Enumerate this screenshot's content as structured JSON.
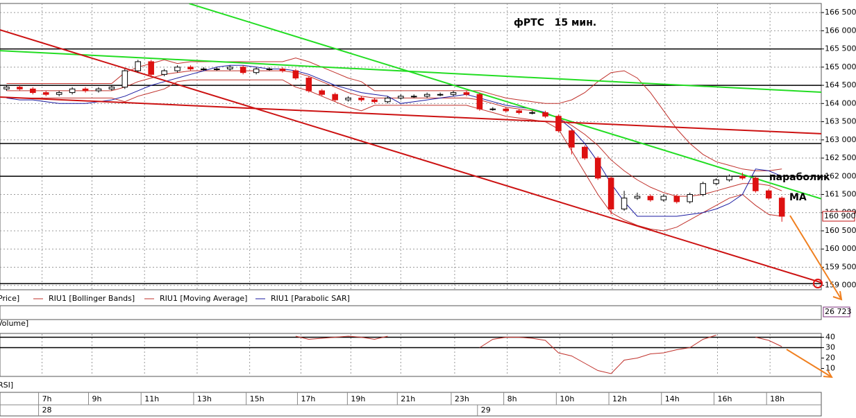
{
  "chart_data": {
    "type": "candlestick",
    "title": "фРТС   15 мин.",
    "annotations": [
      "параболик",
      "MA"
    ],
    "legend": "Price]",
    "ylim": [
      158880,
      166750
    ],
    "yticks": [
      {
        "value": 159000,
        "label": "159 000"
      },
      {
        "value": 159500,
        "label": "159 500"
      },
      {
        "value": 160000,
        "label": "160 000"
      },
      {
        "value": 160500,
        "label": "160 500"
      },
      {
        "value": 161000,
        "label": "161 000"
      },
      {
        "value": 161500,
        "label": "161 500"
      },
      {
        "value": 162000,
        "label": "162 000"
      },
      {
        "value": 162500,
        "label": "162 500"
      },
      {
        "value": 163000,
        "label": "163 000"
      },
      {
        "value": 163500,
        "label": "163 500"
      },
      {
        "value": 164000,
        "label": "164 000"
      },
      {
        "value": 164500,
        "label": "164 500"
      },
      {
        "value": 165000,
        "label": "165 000"
      },
      {
        "value": 165500,
        "label": "165 500"
      },
      {
        "value": 166000,
        "label": "166 000"
      },
      {
        "value": 166500,
        "label": "166 500"
      }
    ],
    "grid": true,
    "xlim": [
      -0.5,
      62
    ],
    "xticks": [
      {
        "value": 2.7,
        "label": "7h"
      },
      {
        "value": 6.5,
        "label": "9h"
      },
      {
        "value": 10.5,
        "label": "11h"
      },
      {
        "value": 14.5,
        "label": "13h"
      },
      {
        "value": 18.5,
        "label": "15h"
      },
      {
        "value": 22.4,
        "label": "17h"
      },
      {
        "value": 26.2,
        "label": "19h"
      },
      {
        "value": 30,
        "label": "21h"
      },
      {
        "value": 34.1,
        "label": "23h"
      },
      {
        "value": 38.1,
        "label": "8h"
      },
      {
        "value": 42.1,
        "label": "10h"
      },
      {
        "value": 46.1,
        "label": "12h"
      },
      {
        "value": 50.1,
        "label": "14h"
      },
      {
        "value": 54.1,
        "label": "16h"
      },
      {
        "value": 58.1,
        "label": "18h"
      }
    ],
    "days": [
      {
        "value": 2.7,
        "label": "28"
      },
      {
        "value": 36.1,
        "label": "29"
      }
    ],
    "up_color": "#ffffff",
    "down_color": "#dd1111",
    "ohlc": [
      [
        164400,
        164500,
        164350,
        164450
      ],
      [
        164450,
        164500,
        164350,
        164400
      ],
      [
        164400,
        164450,
        164250,
        164300
      ],
      [
        164300,
        164350,
        164200,
        164250
      ],
      [
        164250,
        164350,
        164200,
        164300
      ],
      [
        164300,
        164450,
        164250,
        164400
      ],
      [
        164400,
        164450,
        164300,
        164350
      ],
      [
        164350,
        164450,
        164300,
        164400
      ],
      [
        164400,
        164500,
        164350,
        164450
      ],
      [
        164450,
        164950,
        164400,
        164900
      ],
      [
        164900,
        165200,
        164850,
        165150
      ],
      [
        165150,
        165200,
        164750,
        164800
      ],
      [
        164800,
        164950,
        164750,
        164900
      ],
      [
        164900,
        165050,
        164850,
        165000
      ],
      [
        165000,
        165050,
        164900,
        164950
      ],
      [
        164950,
        165000,
        164900,
        164950
      ],
      [
        164950,
        165000,
        164900,
        164950
      ],
      [
        164950,
        165050,
        164900,
        165000
      ],
      [
        165000,
        165050,
        164800,
        164850
      ],
      [
        164850,
        165000,
        164800,
        164950
      ],
      [
        164950,
        165000,
        164900,
        164950
      ],
      [
        164950,
        165000,
        164850,
        164900
      ],
      [
        164900,
        164950,
        164650,
        164700
      ],
      [
        164700,
        164750,
        164300,
        164350
      ],
      [
        164350,
        164400,
        164200,
        164250
      ],
      [
        164250,
        164300,
        164050,
        164100
      ],
      [
        164100,
        164200,
        164050,
        164150
      ],
      [
        164150,
        164200,
        164050,
        164100
      ],
      [
        164100,
        164150,
        164000,
        164050
      ],
      [
        164050,
        164200,
        164000,
        164150
      ],
      [
        164150,
        164250,
        164100,
        164200
      ],
      [
        164200,
        164250,
        164150,
        164200
      ],
      [
        164200,
        164300,
        164150,
        164250
      ],
      [
        164250,
        164300,
        164200,
        164250
      ],
      [
        164250,
        164350,
        164200,
        164300
      ],
      [
        164300,
        164350,
        164200,
        164250
      ],
      [
        164250,
        164300,
        163800,
        163850
      ],
      [
        163850,
        163900,
        163800,
        163850
      ],
      [
        163850,
        163900,
        163750,
        163800
      ],
      [
        163800,
        163850,
        163700,
        163750
      ],
      [
        163750,
        163800,
        163700,
        163750
      ],
      [
        163750,
        163800,
        163600,
        163650
      ],
      [
        163650,
        163700,
        163200,
        163250
      ],
      [
        163250,
        163300,
        162600,
        162800
      ],
      [
        162800,
        162850,
        162450,
        162500
      ],
      [
        162500,
        162550,
        161900,
        161950
      ],
      [
        161950,
        162000,
        160950,
        161100
      ],
      [
        161100,
        161600,
        161050,
        161400
      ],
      [
        161400,
        161550,
        161350,
        161450
      ],
      [
        161450,
        161500,
        161300,
        161350
      ],
      [
        161350,
        161500,
        161300,
        161450
      ],
      [
        161450,
        161500,
        161250,
        161300
      ],
      [
        161300,
        161550,
        161250,
        161500
      ],
      [
        161500,
        161850,
        161450,
        161800
      ],
      [
        161800,
        161950,
        161750,
        161900
      ],
      [
        161900,
        162050,
        161850,
        162000
      ],
      [
        162000,
        162100,
        161900,
        161950
      ],
      [
        161950,
        162000,
        161550,
        161600
      ],
      [
        161600,
        161650,
        161350,
        161400
      ],
      [
        161400,
        161450,
        160750,
        160900
      ]
    ],
    "bollinger": {
      "name": "RIU1 [Bollinger Bands]",
      "color": "#c0302a",
      "upper": [
        164550,
        164550,
        164550,
        164550,
        164550,
        164550,
        164550,
        164550,
        164550,
        164850,
        165000,
        165100,
        165200,
        165100,
        165150,
        165150,
        165150,
        165150,
        165150,
        165150,
        165150,
        165150,
        165250,
        165150,
        165000,
        164850,
        164700,
        164600,
        164350,
        164350,
        164350,
        164350,
        164350,
        164350,
        164350,
        164350,
        164350,
        164250,
        164150,
        164100,
        164050,
        164000,
        164000,
        164100,
        164300,
        164600,
        164850,
        164900,
        164700,
        164300,
        163800,
        163300,
        162900,
        162600,
        162400,
        162300,
        162200,
        162150,
        162150,
        162200
      ],
      "lower": [
        164150,
        164150,
        164150,
        164150,
        164150,
        164150,
        164150,
        164150,
        164150,
        164050,
        164200,
        164300,
        164400,
        164600,
        164650,
        164650,
        164650,
        164650,
        164650,
        164650,
        164650,
        164650,
        164450,
        164350,
        164200,
        164050,
        163900,
        163800,
        163950,
        163950,
        163950,
        163950,
        163950,
        163950,
        163950,
        163950,
        163850,
        163750,
        163650,
        163600,
        163550,
        163500,
        163300,
        162700,
        162100,
        161500,
        161000,
        160800,
        160650,
        160550,
        160500,
        160600,
        160800,
        161000,
        161200,
        161400,
        161500,
        161200,
        160950,
        160900
      ]
    },
    "ma": {
      "name": "RIU1 [Moving Average]",
      "color": "#c0302a",
      "values": [
        164350,
        164350,
        164350,
        164350,
        164350,
        164350,
        164350,
        164350,
        164350,
        164450,
        164600,
        164700,
        164800,
        164850,
        164900,
        164900,
        164900,
        164900,
        164900,
        164900,
        164900,
        164900,
        164850,
        164750,
        164600,
        164450,
        164300,
        164200,
        164150,
        164150,
        164150,
        164150,
        164150,
        164150,
        164150,
        164150,
        164100,
        164000,
        163900,
        163850,
        163800,
        163750,
        163600,
        163400,
        163150,
        162850,
        162450,
        162150,
        161900,
        161700,
        161550,
        161450,
        161450,
        161500,
        161600,
        161700,
        161800,
        161800,
        161750,
        161600
      ]
    },
    "sar": {
      "name": "RIU1 [Parabolic SAR]",
      "color": "#1a1aa0",
      "values": [
        164150,
        164100,
        164100,
        164050,
        164000,
        164000,
        164000,
        164050,
        164100,
        164200,
        164350,
        164500,
        164600,
        164700,
        164800,
        164900,
        165000,
        165050,
        165050,
        165000,
        164950,
        164950,
        164900,
        164800,
        164650,
        164500,
        164400,
        164300,
        164250,
        164200,
        164000,
        164050,
        164100,
        164150,
        164200,
        164250,
        164150,
        164050,
        163950,
        163900,
        163850,
        163750,
        163600,
        163300,
        162900,
        162400,
        161800,
        161300,
        160900,
        160900,
        160900,
        160900,
        160950,
        161000,
        161100,
        161250,
        161500,
        162200,
        162150,
        162000
      ]
    },
    "levels": [
      165500,
      164500,
      162900,
      162000,
      159050
    ],
    "level_color": "#000000",
    "trendlines": [
      {
        "color": "#22dd22",
        "x": [
          13.9,
          62
        ],
        "y": [
          166747,
          161380
        ]
      },
      {
        "color": "#22dd22",
        "x": [
          -0.5,
          62
        ],
        "y": [
          165453,
          164311
        ]
      },
      {
        "color": "#cc1111",
        "x": [
          -0.5,
          62
        ],
        "y": [
          166024,
          159077
        ]
      },
      {
        "color": "#cc1111",
        "x": [
          -0.5,
          62
        ],
        "y": [
          164178,
          163169
        ]
      }
    ],
    "last_price": {
      "value": 160900,
      "label": "160 900"
    },
    "volume": {
      "label": "Volume]",
      "value_label": "26 723"
    },
    "rsi": {
      "label": "RSI]",
      "color": "#c0302a",
      "ylim": [
        3,
        43
      ],
      "yticks": [
        40,
        30,
        20,
        10
      ],
      "levels": [
        40,
        30
      ],
      "values": [
        null,
        null,
        null,
        null,
        null,
        null,
        null,
        null,
        null,
        null,
        null,
        null,
        null,
        null,
        null,
        null,
        null,
        null,
        null,
        null,
        null,
        null,
        41,
        38,
        39,
        40,
        41,
        40,
        38,
        41,
        null,
        null,
        null,
        null,
        null,
        null,
        30,
        38,
        40,
        40,
        39,
        37,
        25,
        22,
        15,
        8,
        5,
        18,
        20,
        24,
        25,
        28,
        30,
        38,
        42,
        null,
        null,
        40,
        37,
        31
      ]
    }
  }
}
